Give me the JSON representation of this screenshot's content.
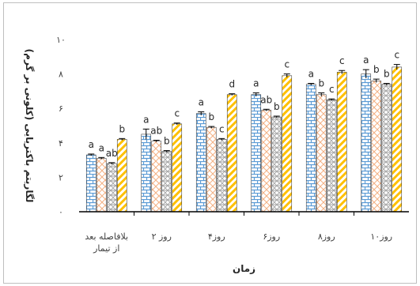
{
  "chart_data": {
    "type": "bar",
    "xlabel": "زمان",
    "ylabel": "لگاریتم باکتریایی (کلونی بر گرم)",
    "ylim": [
      0,
      10
    ],
    "yticks": [
      0,
      2,
      4,
      6,
      8,
      10
    ],
    "ytick_labels": [
      "۰",
      "۲",
      "۴",
      "۶",
      "۸",
      "۱۰"
    ],
    "categories": [
      [
        "بلافاصله بعد",
        "از تیمار"
      ],
      [
        "روز ۲"
      ],
      [
        "روز۴"
      ],
      [
        "روز۶"
      ],
      [
        "روز۸"
      ],
      [
        "روز۱۰"
      ]
    ],
    "series": [
      {
        "pattern": "brick",
        "color": "#5b9bd5",
        "values": [
          3.3,
          4.5,
          5.7,
          6.8,
          7.4,
          8.0
        ],
        "errors": [
          0.05,
          0.3,
          0.1,
          0.1,
          0.05,
          0.25
        ],
        "letters": [
          "a",
          "a",
          "a",
          "a",
          "a",
          "a"
        ]
      },
      {
        "pattern": "diamond",
        "color": "#f4b183",
        "values": [
          3.1,
          4.1,
          4.9,
          5.9,
          6.8,
          7.6
        ],
        "errors": [
          0.05,
          0.05,
          0.05,
          0.05,
          0.1,
          0.1
        ],
        "letters": [
          "a",
          "ab",
          "b",
          "ab",
          "b",
          "b"
        ]
      },
      {
        "pattern": "plaid",
        "color": "#a5a5a5",
        "values": [
          2.8,
          3.5,
          4.2,
          5.5,
          6.5,
          7.4
        ],
        "errors": [
          0.05,
          0.05,
          0.05,
          0.05,
          0.05,
          0.05
        ],
        "letters": [
          "ab",
          "b",
          "c",
          "b",
          "c",
          "b"
        ]
      },
      {
        "pattern": "diagonal",
        "color": "#ffc000",
        "values": [
          4.2,
          5.1,
          6.8,
          7.9,
          8.1,
          8.4
        ],
        "errors": [
          0.05,
          0.05,
          0.05,
          0.1,
          0.1,
          0.15
        ],
        "letters": [
          "b",
          "c",
          "d",
          "c",
          "c",
          "c"
        ]
      }
    ],
    "grid": false,
    "legend": "none"
  }
}
